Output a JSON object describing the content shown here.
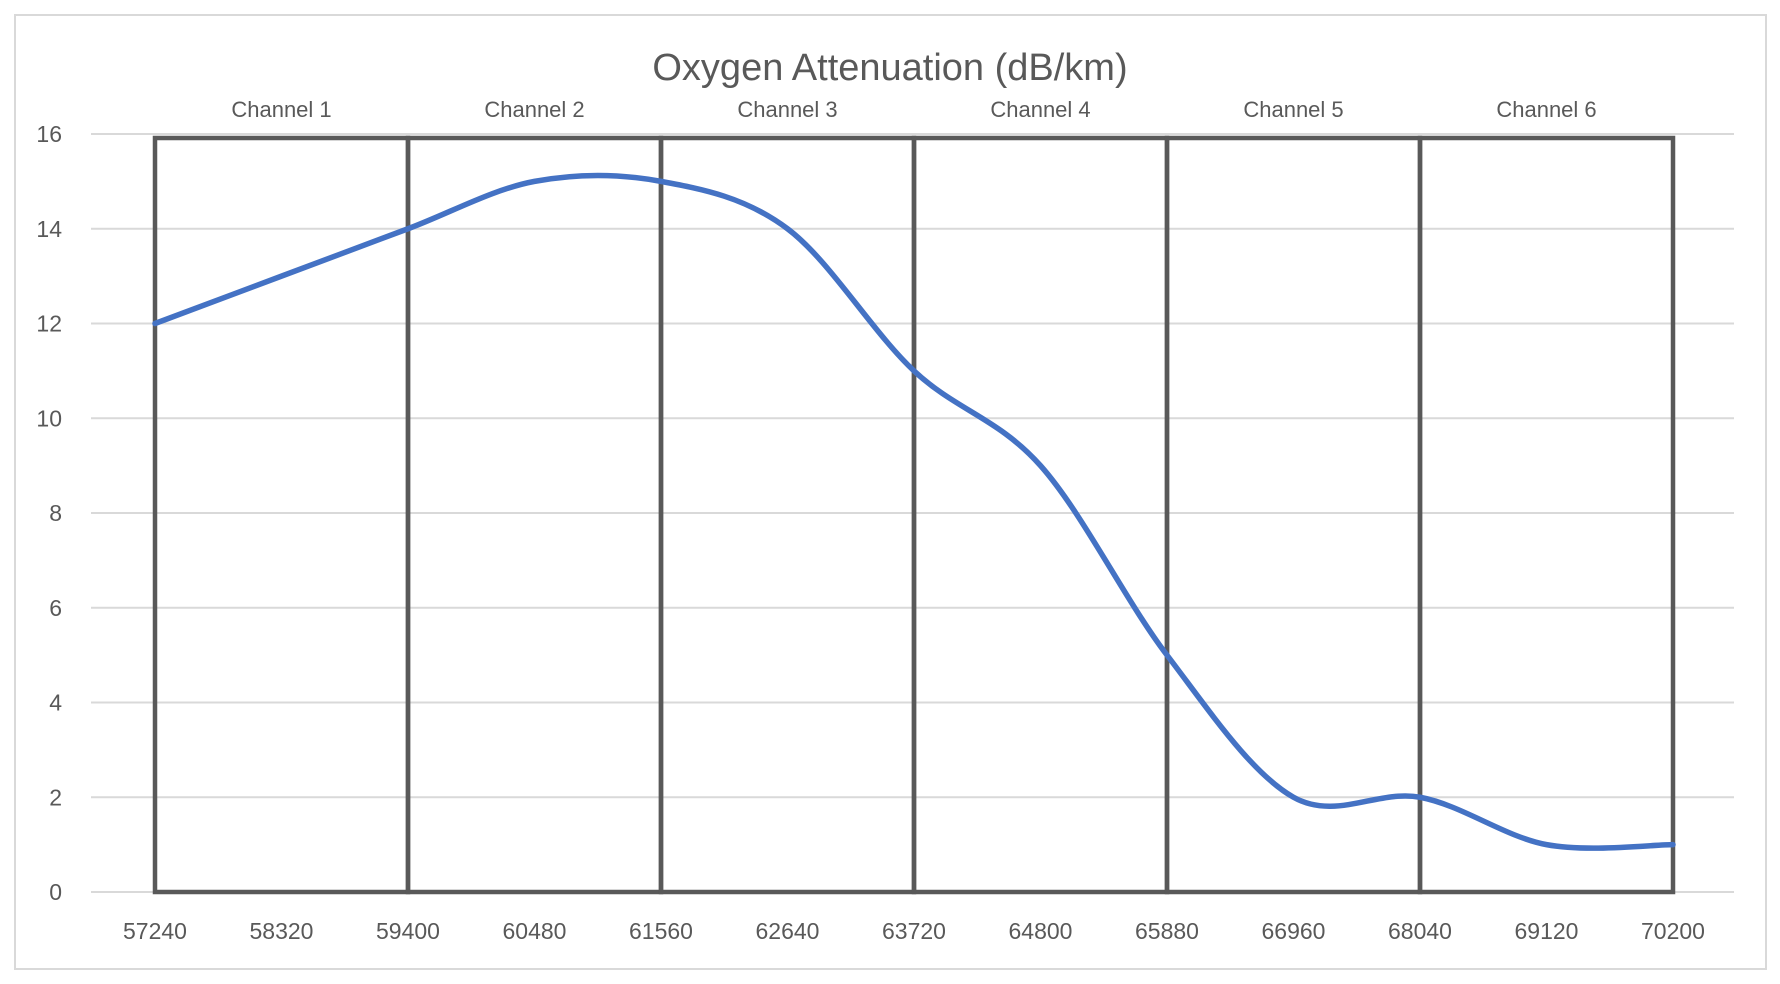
{
  "chart_data": {
    "type": "line",
    "title": "Oxygen Attenuation (dB/km)",
    "xlabel": "",
    "ylabel": "",
    "categories": [
      "57240",
      "58320",
      "59400",
      "60480",
      "61560",
      "62640",
      "63720",
      "64800",
      "65880",
      "66960",
      "68040",
      "69120",
      "70200"
    ],
    "series": [
      {
        "values": [
          12,
          13,
          14,
          15,
          15,
          14,
          11,
          9,
          5,
          2,
          2,
          1,
          1
        ],
        "color": "#4472C4",
        "smoothed": true
      }
    ],
    "ylim": [
      0,
      16
    ],
    "yticks": [
      0,
      2,
      4,
      6,
      8,
      10,
      12,
      14,
      16
    ],
    "grid": "horizontal",
    "channels": [
      {
        "label": "Channel 1",
        "start": "57240",
        "end": "59400"
      },
      {
        "label": "Channel 2",
        "start": "59400",
        "end": "61560"
      },
      {
        "label": "Channel 3",
        "start": "61560",
        "end": "63720"
      },
      {
        "label": "Channel 4",
        "start": "63720",
        "end": "65880"
      },
      {
        "label": "Channel 5",
        "start": "65880",
        "end": "68040"
      },
      {
        "label": "Channel 6",
        "start": "68040",
        "end": "70200"
      }
    ],
    "channel_border_color": "#595959",
    "text_color": "#595959",
    "grid_color": "#d9d9d9"
  }
}
